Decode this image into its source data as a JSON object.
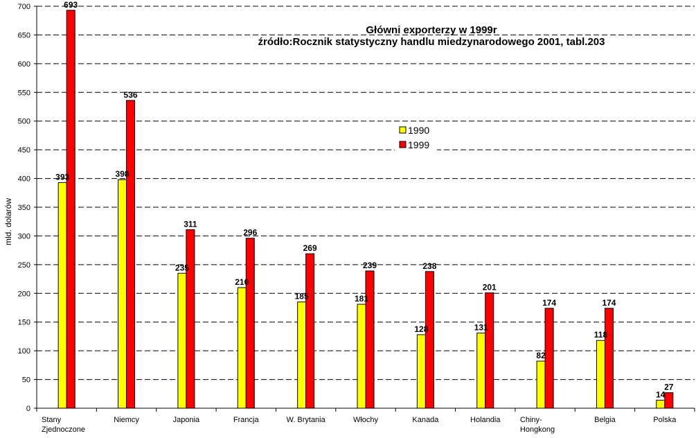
{
  "chart_data": {
    "type": "bar",
    "title": "Główni exporterzy w 1999r",
    "subtitle": "źródło:Rocznik statystyczny handlu miedzynarodowego 2001, tabl.203",
    "xlabel": "",
    "ylabel": "mld. dolarów",
    "ylim": [
      0,
      700
    ],
    "ytick_step": 50,
    "grid": "horizontal-dashed",
    "legend_placement": "center",
    "categories": [
      [
        "Stany",
        "Zjednoczone"
      ],
      [
        "Niemcy"
      ],
      [
        "Japonia"
      ],
      [
        "Francja"
      ],
      [
        "W. Brytania"
      ],
      [
        "Włochy"
      ],
      [
        "Kanada"
      ],
      [
        "Holandia"
      ],
      [
        "Chiny-",
        "Hongkong"
      ],
      [
        "Belgia"
      ],
      [
        "Polska"
      ]
    ],
    "series": [
      {
        "name": "1990",
        "color": "#ffff00",
        "values": [
          393,
          398,
          235,
          210,
          185,
          181,
          128,
          131,
          82,
          118,
          14
        ]
      },
      {
        "name": "1999",
        "color": "#ff0000",
        "values": [
          693,
          536,
          311,
          296,
          269,
          239,
          238,
          201,
          174,
          174,
          27
        ]
      }
    ]
  }
}
